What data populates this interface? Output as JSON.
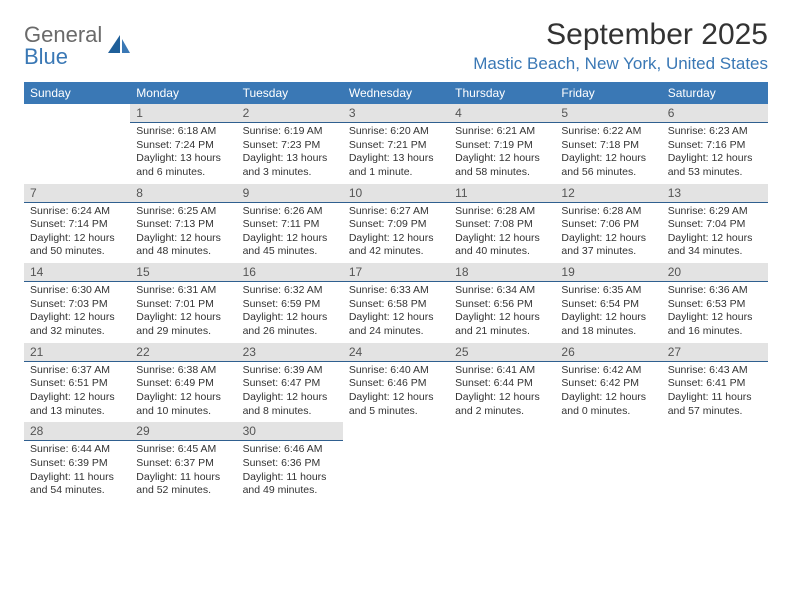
{
  "logo": {
    "text1": "General",
    "text2": "Blue"
  },
  "title": "September 2025",
  "location": "Mastic Beach, New York, United States",
  "colors": {
    "header_blue": "#3a78b5",
    "num_bg": "#e3e3e3",
    "num_border": "#2f5f8f",
    "text": "#333333",
    "logo_gray": "#6a6a6a"
  },
  "daynames": [
    "Sunday",
    "Monday",
    "Tuesday",
    "Wednesday",
    "Thursday",
    "Friday",
    "Saturday"
  ],
  "weeks": [
    [
      null,
      {
        "n": "1",
        "sr": "Sunrise: 6:18 AM",
        "ss": "Sunset: 7:24 PM",
        "dl": "Daylight: 13 hours and 6 minutes."
      },
      {
        "n": "2",
        "sr": "Sunrise: 6:19 AM",
        "ss": "Sunset: 7:23 PM",
        "dl": "Daylight: 13 hours and 3 minutes."
      },
      {
        "n": "3",
        "sr": "Sunrise: 6:20 AM",
        "ss": "Sunset: 7:21 PM",
        "dl": "Daylight: 13 hours and 1 minute."
      },
      {
        "n": "4",
        "sr": "Sunrise: 6:21 AM",
        "ss": "Sunset: 7:19 PM",
        "dl": "Daylight: 12 hours and 58 minutes."
      },
      {
        "n": "5",
        "sr": "Sunrise: 6:22 AM",
        "ss": "Sunset: 7:18 PM",
        "dl": "Daylight: 12 hours and 56 minutes."
      },
      {
        "n": "6",
        "sr": "Sunrise: 6:23 AM",
        "ss": "Sunset: 7:16 PM",
        "dl": "Daylight: 12 hours and 53 minutes."
      }
    ],
    [
      {
        "n": "7",
        "sr": "Sunrise: 6:24 AM",
        "ss": "Sunset: 7:14 PM",
        "dl": "Daylight: 12 hours and 50 minutes."
      },
      {
        "n": "8",
        "sr": "Sunrise: 6:25 AM",
        "ss": "Sunset: 7:13 PM",
        "dl": "Daylight: 12 hours and 48 minutes."
      },
      {
        "n": "9",
        "sr": "Sunrise: 6:26 AM",
        "ss": "Sunset: 7:11 PM",
        "dl": "Daylight: 12 hours and 45 minutes."
      },
      {
        "n": "10",
        "sr": "Sunrise: 6:27 AM",
        "ss": "Sunset: 7:09 PM",
        "dl": "Daylight: 12 hours and 42 minutes."
      },
      {
        "n": "11",
        "sr": "Sunrise: 6:28 AM",
        "ss": "Sunset: 7:08 PM",
        "dl": "Daylight: 12 hours and 40 minutes."
      },
      {
        "n": "12",
        "sr": "Sunrise: 6:28 AM",
        "ss": "Sunset: 7:06 PM",
        "dl": "Daylight: 12 hours and 37 minutes."
      },
      {
        "n": "13",
        "sr": "Sunrise: 6:29 AM",
        "ss": "Sunset: 7:04 PM",
        "dl": "Daylight: 12 hours and 34 minutes."
      }
    ],
    [
      {
        "n": "14",
        "sr": "Sunrise: 6:30 AM",
        "ss": "Sunset: 7:03 PM",
        "dl": "Daylight: 12 hours and 32 minutes."
      },
      {
        "n": "15",
        "sr": "Sunrise: 6:31 AM",
        "ss": "Sunset: 7:01 PM",
        "dl": "Daylight: 12 hours and 29 minutes."
      },
      {
        "n": "16",
        "sr": "Sunrise: 6:32 AM",
        "ss": "Sunset: 6:59 PM",
        "dl": "Daylight: 12 hours and 26 minutes."
      },
      {
        "n": "17",
        "sr": "Sunrise: 6:33 AM",
        "ss": "Sunset: 6:58 PM",
        "dl": "Daylight: 12 hours and 24 minutes."
      },
      {
        "n": "18",
        "sr": "Sunrise: 6:34 AM",
        "ss": "Sunset: 6:56 PM",
        "dl": "Daylight: 12 hours and 21 minutes."
      },
      {
        "n": "19",
        "sr": "Sunrise: 6:35 AM",
        "ss": "Sunset: 6:54 PM",
        "dl": "Daylight: 12 hours and 18 minutes."
      },
      {
        "n": "20",
        "sr": "Sunrise: 6:36 AM",
        "ss": "Sunset: 6:53 PM",
        "dl": "Daylight: 12 hours and 16 minutes."
      }
    ],
    [
      {
        "n": "21",
        "sr": "Sunrise: 6:37 AM",
        "ss": "Sunset: 6:51 PM",
        "dl": "Daylight: 12 hours and 13 minutes."
      },
      {
        "n": "22",
        "sr": "Sunrise: 6:38 AM",
        "ss": "Sunset: 6:49 PM",
        "dl": "Daylight: 12 hours and 10 minutes."
      },
      {
        "n": "23",
        "sr": "Sunrise: 6:39 AM",
        "ss": "Sunset: 6:47 PM",
        "dl": "Daylight: 12 hours and 8 minutes."
      },
      {
        "n": "24",
        "sr": "Sunrise: 6:40 AM",
        "ss": "Sunset: 6:46 PM",
        "dl": "Daylight: 12 hours and 5 minutes."
      },
      {
        "n": "25",
        "sr": "Sunrise: 6:41 AM",
        "ss": "Sunset: 6:44 PM",
        "dl": "Daylight: 12 hours and 2 minutes."
      },
      {
        "n": "26",
        "sr": "Sunrise: 6:42 AM",
        "ss": "Sunset: 6:42 PM",
        "dl": "Daylight: 12 hours and 0 minutes."
      },
      {
        "n": "27",
        "sr": "Sunrise: 6:43 AM",
        "ss": "Sunset: 6:41 PM",
        "dl": "Daylight: 11 hours and 57 minutes."
      }
    ],
    [
      {
        "n": "28",
        "sr": "Sunrise: 6:44 AM",
        "ss": "Sunset: 6:39 PM",
        "dl": "Daylight: 11 hours and 54 minutes."
      },
      {
        "n": "29",
        "sr": "Sunrise: 6:45 AM",
        "ss": "Sunset: 6:37 PM",
        "dl": "Daylight: 11 hours and 52 minutes."
      },
      {
        "n": "30",
        "sr": "Sunrise: 6:46 AM",
        "ss": "Sunset: 6:36 PM",
        "dl": "Daylight: 11 hours and 49 minutes."
      },
      null,
      null,
      null,
      null
    ]
  ]
}
